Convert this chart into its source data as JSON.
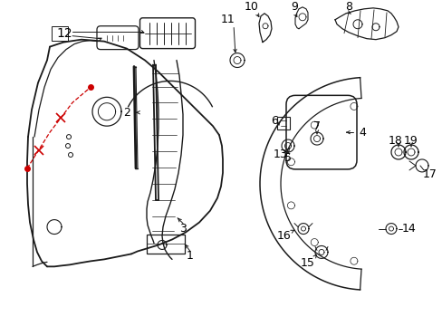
{
  "bg_color": "#ffffff",
  "line_color": "#1a1a1a",
  "label_color": "#000000",
  "red_color": "#cc0000",
  "figsize": [
    4.89,
    3.6
  ],
  "dpi": 100
}
